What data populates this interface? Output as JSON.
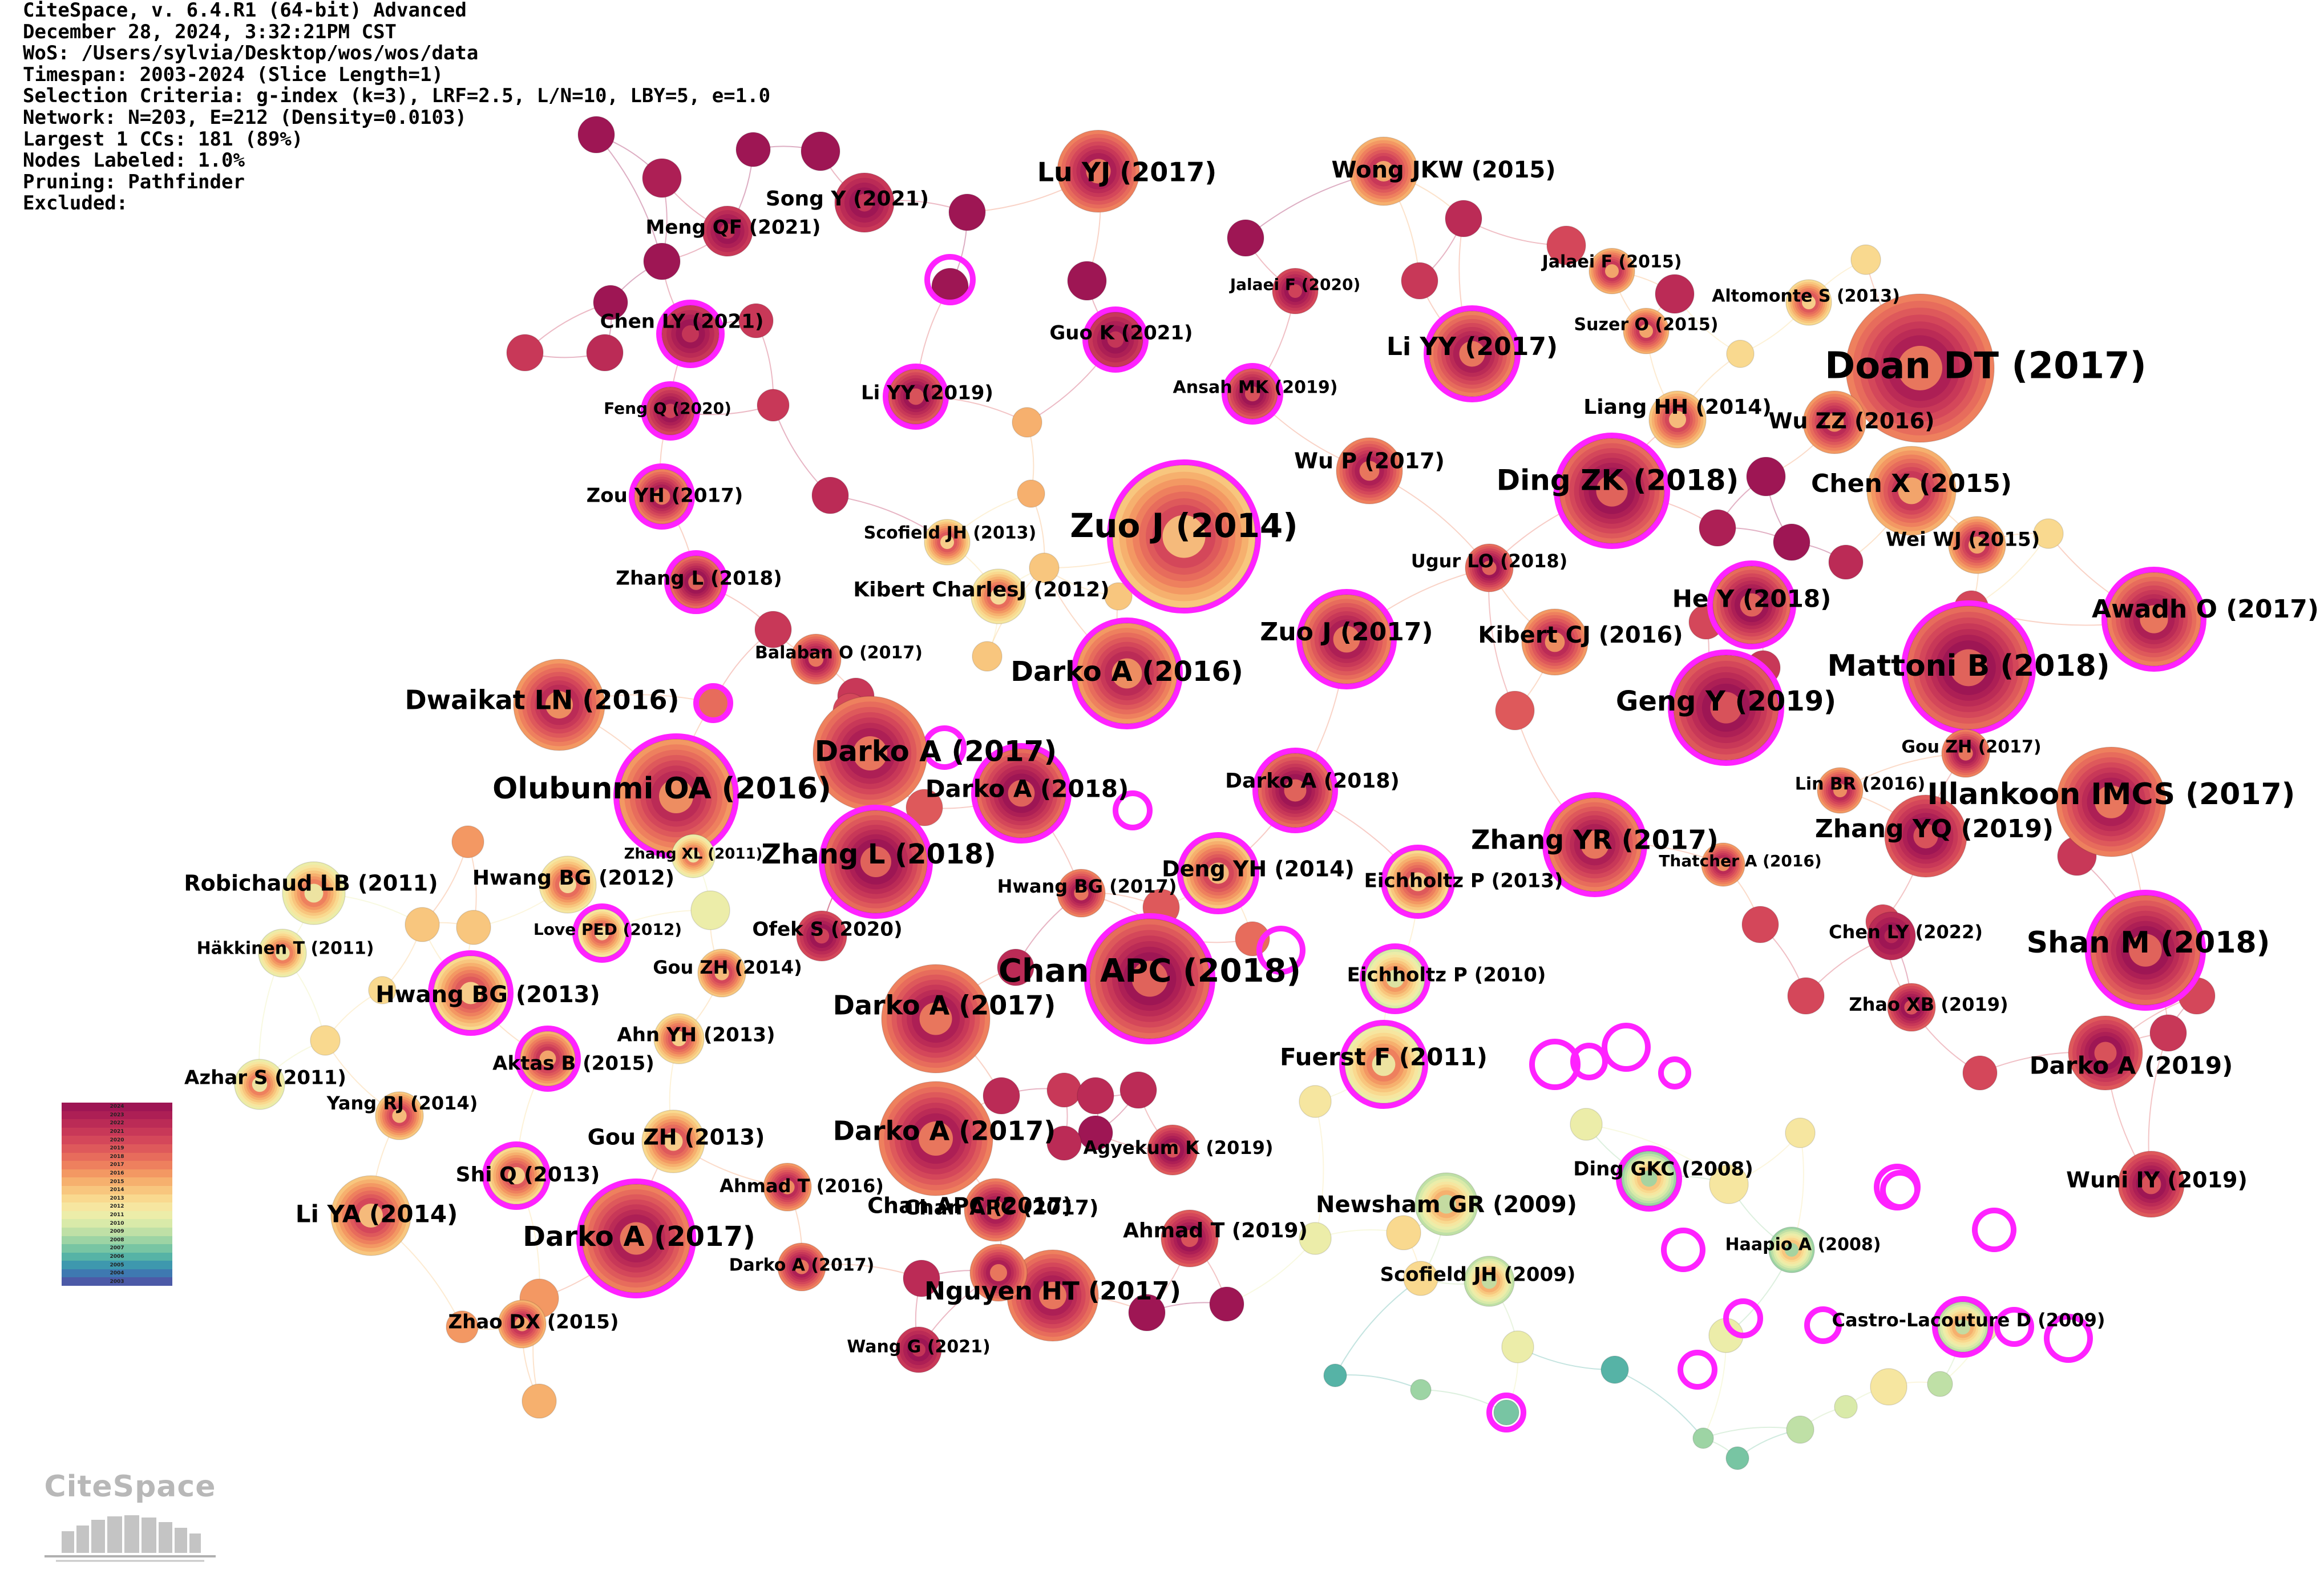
{
  "header_lines": [
    "CiteSpace, v. 6.4.R1 (64-bit) Advanced",
    "December 28, 2024, 3:32:21PM CST",
    "WoS: /Users/sylvia/Desktop/wos/wos/data",
    "Timespan: 2003-2024 (Slice Length=1)",
    "Selection Criteria: g-index (k=3), LRF=2.5, L/N=10, LBY=5, e=1.0",
    "Network: N=203, E=212 (Density=0.0103)",
    "Largest 1 CCs: 181 (89%)",
    "Nodes Labeled: 1.0%",
    "Pruning: Pathfinder",
    "Excluded:"
  ],
  "legend_years": [
    "2024",
    "2023",
    "2022",
    "2021",
    "2020",
    "2019",
    "2018",
    "2017",
    "2016",
    "2015",
    "2014",
    "2013",
    "2012",
    "2011",
    "2010",
    "2009",
    "2008",
    "2007",
    "2006",
    "2005",
    "2004",
    "2003"
  ],
  "legend_colors": [
    "#9e1654",
    "#ad1f55",
    "#bb2b56",
    "#c83858",
    "#d4475a",
    "#de595b",
    "#e76c5c",
    "#ee805e",
    "#f39863",
    "#f6b06e",
    "#f8c67e",
    "#f9d98f",
    "#f6e6a0",
    "#eceda9",
    "#d9eaa9",
    "#bfe0a6",
    "#9dd4a4",
    "#78c5a3",
    "#56b3a6",
    "#3e98ae",
    "#3e79b1",
    "#4c5aa7"
  ],
  "logo_text": "CiteSpace",
  "nodes": [
    {
      "label": "Doan DT (2017)",
      "year": 2017,
      "r": 130,
      "burst": false
    },
    {
      "label": "Zuo J (2014)",
      "year": 2014,
      "r": 125,
      "burst": true
    },
    {
      "label": "Chan APC (2018)",
      "year": 2018,
      "r": 105,
      "burst": true
    },
    {
      "label": "Olubunmi OA (2016)",
      "year": 2016,
      "r": 100,
      "burst": true
    },
    {
      "label": "Darko A (2017)",
      "year": 2017,
      "r": 100,
      "burst": false
    },
    {
      "label": "Mattoni B (2018)",
      "year": 2018,
      "r": 108,
      "burst": true
    },
    {
      "label": "Illankoon IMCS (2017)",
      "year": 2017,
      "r": 96,
      "burst": false
    },
    {
      "label": "Shan M (2018)",
      "year": 2018,
      "r": 96,
      "burst": true
    },
    {
      "label": "Ding ZK (2018)",
      "year": 2018,
      "r": 92,
      "burst": true
    },
    {
      "label": "Darko A (2017)",
      "year": 2017,
      "r": 95,
      "burst": true
    },
    {
      "label": "Zhang L (2018)",
      "year": 2018,
      "r": 90,
      "burst": true
    },
    {
      "label": "Darko A (2016)",
      "year": 2016,
      "r": 88,
      "burst": true
    },
    {
      "label": "Geng Y (2019)",
      "year": 2019,
      "r": 92,
      "burst": true
    },
    {
      "label": "Zhang YR (2017)",
      "year": 2017,
      "r": 82,
      "burst": true
    },
    {
      "label": "Darko A (2017)",
      "year": 2017,
      "r": 95,
      "burst": false
    },
    {
      "label": "Darko A (2017)",
      "year": 2017,
      "r": 100,
      "burst": false
    },
    {
      "label": "Zuo J (2017)",
      "year": 2017,
      "r": 78,
      "burst": true
    },
    {
      "label": "Lu YJ (2017)",
      "year": 2017,
      "r": 72,
      "burst": false
    },
    {
      "label": "Dwaikat LN (2016)",
      "year": 2016,
      "r": 80,
      "burst": false
    },
    {
      "label": "Nguyen HT (2017)",
      "year": 2017,
      "r": 80,
      "burst": false
    },
    {
      "label": "Li YY (2017)",
      "year": 2017,
      "r": 75,
      "burst": true
    },
    {
      "label": "Chen X (2015)",
      "year": 2015,
      "r": 78,
      "burst": false
    },
    {
      "label": "Awadh O (2017)",
      "year": 2017,
      "r": 82,
      "burst": true
    },
    {
      "label": "Darko A (2018)",
      "year": 2018,
      "r": 78,
      "burst": true
    },
    {
      "label": "Li YA (2014)",
      "year": 2014,
      "r": 70,
      "burst": false
    },
    {
      "label": "He Y (2018)",
      "year": 2018,
      "r": 68,
      "burst": true
    },
    {
      "label": "Zhang YQ (2019)",
      "year": 2019,
      "r": 72,
      "burst": false
    },
    {
      "label": "Fuerst F (2011)",
      "year": 2011,
      "r": 68,
      "burst": true
    },
    {
      "label": "Deng YH (2014)",
      "year": 2014,
      "r": 62,
      "burst": true
    },
    {
      "label": "Darko A (2019)",
      "year": 2019,
      "r": 65,
      "burst": false
    },
    {
      "label": "Hwang BG (2013)",
      "year": 2013,
      "r": 65,
      "burst": true
    },
    {
      "label": "Robichaud LB (2011)",
      "year": 2011,
      "r": 55,
      "burst": false
    },
    {
      "label": "Kibert CJ (2016)",
      "year": 2016,
      "r": 58,
      "burst": false
    },
    {
      "label": "Wu P (2017)",
      "year": 2017,
      "r": 58,
      "burst": false
    },
    {
      "label": "Wong JKW (2015)",
      "year": 2015,
      "r": 60,
      "burst": false
    },
    {
      "label": "Chan APC (2017)",
      "year": 2017,
      "r": 55,
      "burst": false
    },
    {
      "label": "Darko A (2018)",
      "year": 2018,
      "r": 65,
      "burst": true
    },
    {
      "label": "Wuni IY (2019)",
      "year": 2019,
      "r": 58,
      "burst": false
    },
    {
      "label": "Wu ZZ (2016)",
      "year": 2016,
      "r": 55,
      "burst": false
    },
    {
      "label": "Newsham GR (2009)",
      "year": 2009,
      "r": 55,
      "burst": false
    },
    {
      "label": "Eichholtz P (2013)",
      "year": 2013,
      "r": 55,
      "burst": true
    },
    {
      "label": "Eichholtz P (2010)",
      "year": 2010,
      "r": 52,
      "burst": true
    },
    {
      "label": "Ahmad T (2019)",
      "year": 2019,
      "r": 50,
      "burst": false
    },
    {
      "label": "Song Y (2021)",
      "year": 2021,
      "r": 52,
      "burst": false
    },
    {
      "label": "Chen LY (2021)",
      "year": 2021,
      "r": 50,
      "burst": true
    },
    {
      "label": "Kibert CharlesJ (2012)",
      "year": 2012,
      "r": 48,
      "burst": false
    },
    {
      "label": "Ding GKC (2008)",
      "year": 2008,
      "r": 48,
      "burst": true
    },
    {
      "label": "Gou ZH (2013)",
      "year": 2013,
      "r": 55,
      "burst": false
    },
    {
      "label": "Hwang BG (2012)",
      "year": 2012,
      "r": 50,
      "burst": false
    },
    {
      "label": "Wei WJ (2015)",
      "year": 2015,
      "r": 50,
      "burst": false
    },
    {
      "label": "Liang HH (2014)",
      "year": 2014,
      "r": 50,
      "burst": false
    },
    {
      "label": "Zou YH (2017)",
      "year": 2017,
      "r": 48,
      "burst": true
    },
    {
      "label": "Shi Q (2013)",
      "year": 2013,
      "r": 50,
      "burst": true
    },
    {
      "label": "Li YY (2019)",
      "year": 2019,
      "r": 48,
      "burst": true
    },
    {
      "label": "Guo K (2021)",
      "year": 2021,
      "r": 48,
      "burst": true
    },
    {
      "label": "Zhang L (2018)",
      "year": 2018,
      "r": 46,
      "burst": true
    },
    {
      "label": "Meng QF (2021)",
      "year": 2021,
      "r": 44,
      "burst": false
    },
    {
      "label": "Balaban O (2017)",
      "year": 2017,
      "r": 44,
      "burst": false
    },
    {
      "label": "Hwang BG (2017)",
      "year": 2017,
      "r": 42,
      "burst": false
    },
    {
      "label": "Altomonte S (2013)",
      "year": 2013,
      "r": 40,
      "burst": false
    },
    {
      "label": "Scofield JH (2013)",
      "year": 2013,
      "r": 40,
      "burst": false
    },
    {
      "label": "Scofield JH (2009)",
      "year": 2009,
      "r": 44,
      "burst": false
    },
    {
      "label": "Agyekum K (2019)",
      "year": 2019,
      "r": 44,
      "burst": false
    },
    {
      "label": "Ofek S (2020)",
      "year": 2020,
      "r": 44,
      "burst": false
    },
    {
      "label": "Chen LY (2022)",
      "year": 2022,
      "r": 42,
      "burst": false
    },
    {
      "label": "Zhao XB (2019)",
      "year": 2019,
      "r": 42,
      "burst": false
    },
    {
      "label": "Ugur LO (2018)",
      "year": 2018,
      "r": 42,
      "burst": false
    },
    {
      "label": "Aktas B (2015)",
      "year": 2015,
      "r": 48,
      "burst": true
    },
    {
      "label": "Gou ZH (2014)",
      "year": 2014,
      "r": 42,
      "burst": false
    },
    {
      "label": "Ahn YH (2013)",
      "year": 2013,
      "r": 44,
      "burst": false
    },
    {
      "label": "Azhar S (2011)",
      "year": 2011,
      "r": 44,
      "burst": false
    },
    {
      "label": "Yang RJ (2014)",
      "year": 2014,
      "r": 42,
      "burst": false
    },
    {
      "label": "Love PED (2012)",
      "year": 2012,
      "r": 42,
      "burst": true
    },
    {
      "label": "Häkkinen T (2011)",
      "year": 2011,
      "r": 42,
      "burst": false
    },
    {
      "label": "Zhang XL (2011)",
      "year": 2011,
      "r": 38,
      "burst": false
    },
    {
      "label": "Gou ZH (2017)",
      "year": 2017,
      "r": 42,
      "burst": false
    },
    {
      "label": "Lin BR (2016)",
      "year": 2016,
      "r": 40,
      "burst": false
    },
    {
      "label": "Thatcher A (2016)",
      "year": 2016,
      "r": 38,
      "burst": false
    },
    {
      "label": "Jalaei F (2015)",
      "year": 2015,
      "r": 40,
      "burst": false
    },
    {
      "label": "Jalaei F (2020)",
      "year": 2020,
      "r": 40,
      "burst": false
    },
    {
      "label": "Suzer O (2015)",
      "year": 2015,
      "r": 40,
      "burst": false
    },
    {
      "label": "Ansah MK (2019)",
      "year": 2019,
      "r": 44,
      "burst": true
    },
    {
      "label": "Feng Q (2020)",
      "year": 2020,
      "r": 42,
      "burst": true
    },
    {
      "label": "Ahmad T (2016)",
      "year": 2016,
      "r": 42,
      "burst": false
    },
    {
      "label": "Darko A (2017)",
      "year": 2017,
      "r": 42,
      "burst": false
    },
    {
      "label": "Zhao DX (2015)",
      "year": 2015,
      "r": 42,
      "burst": false
    },
    {
      "label": "Wang G (2021)",
      "year": 2021,
      "r": 40,
      "burst": false
    },
    {
      "label": "Haapio A (2008)",
      "year": 2008,
      "r": 40,
      "burst": false
    },
    {
      "label": "Castro-Lacouture D (2009)",
      "year": 2009,
      "r": 44,
      "burst": true
    },
    {
      "label": "Chan APC (2017)",
      "year": 2017,
      "r": 50,
      "burst": false
    }
  ]
}
